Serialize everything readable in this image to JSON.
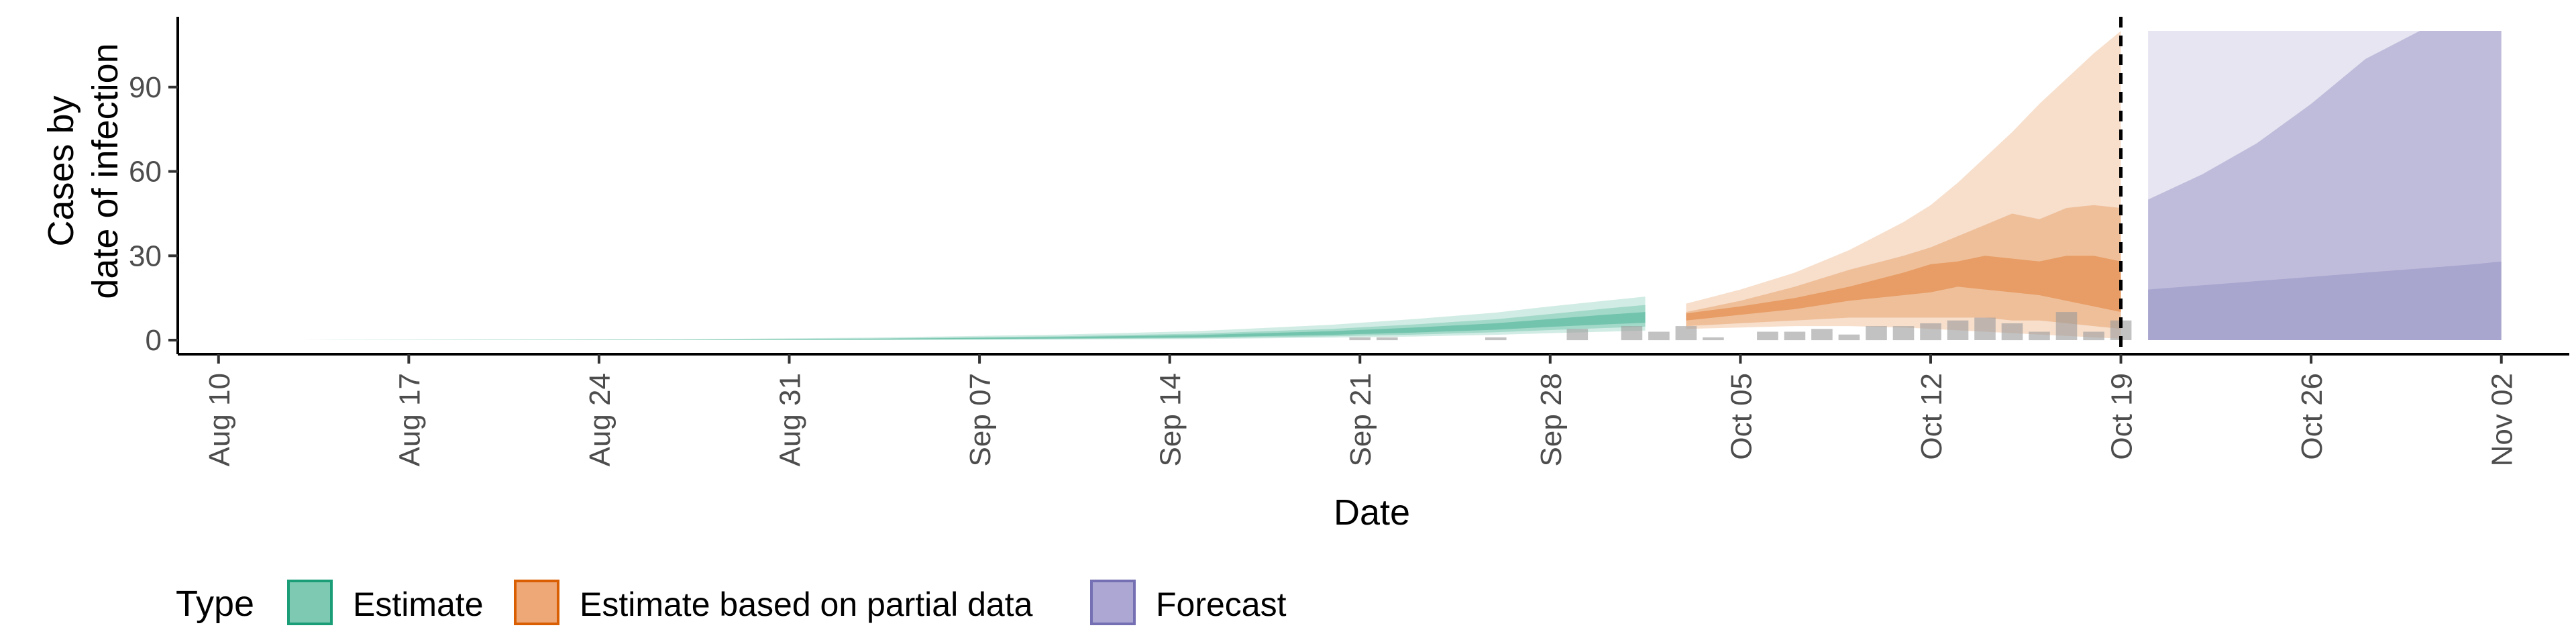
{
  "chart_data": {
    "type": "area",
    "xlabel": "Date",
    "ylabel": [
      "Cases by",
      "date of infection"
    ],
    "x_ticks": [
      "Aug 10",
      "Aug 17",
      "Aug 24",
      "Aug 31",
      "Sep 07",
      "Sep 14",
      "Sep 21",
      "Sep 28",
      "Oct 05",
      "Oct 12",
      "Oct 19",
      "Oct 26",
      "Nov 02"
    ],
    "x_tick_days": [
      0,
      7,
      14,
      21,
      28,
      35,
      42,
      49,
      56,
      63,
      70,
      77,
      84
    ],
    "x_range": [
      -1.5,
      86.5
    ],
    "y_ticks": [
      0,
      30,
      60,
      90
    ],
    "ylim": [
      -5,
      115
    ],
    "forecast_start_line": "Oct 19",
    "legend": {
      "title": "Type",
      "position": "bottom",
      "entries": [
        {
          "label": "Estimate",
          "fill": "#7dc9b1",
          "stroke": "#1b9e77"
        },
        {
          "label": "Estimate based on partial data",
          "fill": "#eea776",
          "stroke": "#d95f02"
        },
        {
          "label": "Forecast",
          "fill": "#ada7d4",
          "stroke": "#7570b3"
        }
      ]
    },
    "colors": {
      "estimate": "#1b9e77",
      "partial": "#d95f02",
      "forecast": "#7570b3",
      "bars": "#999999"
    },
    "reported_cases": [
      {
        "day": 42,
        "cases": 1
      },
      {
        "day": 43,
        "cases": 1
      },
      {
        "day": 47,
        "cases": 1
      },
      {
        "day": 50,
        "cases": 4
      },
      {
        "day": 52,
        "cases": 5
      },
      {
        "day": 53,
        "cases": 3
      },
      {
        "day": 54,
        "cases": 5
      },
      {
        "day": 55,
        "cases": 1
      },
      {
        "day": 57,
        "cases": 3
      },
      {
        "day": 58,
        "cases": 3
      },
      {
        "day": 59,
        "cases": 4
      },
      {
        "day": 60,
        "cases": 2
      },
      {
        "day": 61,
        "cases": 5
      },
      {
        "day": 62,
        "cases": 5
      },
      {
        "day": 63,
        "cases": 6
      },
      {
        "day": 64,
        "cases": 7
      },
      {
        "day": 65,
        "cases": 8
      },
      {
        "day": 66,
        "cases": 6
      },
      {
        "day": 67,
        "cases": 3
      },
      {
        "day": 68,
        "cases": 10
      },
      {
        "day": 69,
        "cases": 3
      },
      {
        "day": 70,
        "cases": 7
      }
    ],
    "estimate": {
      "days": [
        3,
        10,
        17,
        24,
        31,
        36,
        41,
        44,
        47,
        49,
        51,
        52.5
      ],
      "median": [
        0,
        0.05,
        0.1,
        0.3,
        0.8,
        1.3,
        2.4,
        3.4,
        4.6,
        5.8,
        7.0,
        7.8
      ],
      "inner": [
        [
          0,
          0
        ],
        [
          0.03,
          0.1
        ],
        [
          0.06,
          0.15
        ],
        [
          0.2,
          0.45
        ],
        [
          0.6,
          1.1
        ],
        [
          1.0,
          1.8
        ],
        [
          1.9,
          3.2
        ],
        [
          2.7,
          4.5
        ],
        [
          3.7,
          6.0
        ],
        [
          4.7,
          7.5
        ],
        [
          5.6,
          9.0
        ],
        [
          6.2,
          10.0
        ]
      ],
      "mid": [
        [
          0,
          0
        ],
        [
          0.01,
          0.12
        ],
        [
          0.03,
          0.2
        ],
        [
          0.1,
          0.6
        ],
        [
          0.4,
          1.4
        ],
        [
          0.7,
          2.3
        ],
        [
          1.4,
          4.0
        ],
        [
          2.0,
          5.6
        ],
        [
          2.8,
          7.4
        ],
        [
          3.6,
          9.3
        ],
        [
          4.3,
          11.2
        ],
        [
          4.8,
          12.5
        ]
      ],
      "outer": [
        [
          0,
          0.02
        ],
        [
          0,
          0.15
        ],
        [
          0,
          0.3
        ],
        [
          0.05,
          0.9
        ],
        [
          0.2,
          2.0
        ],
        [
          0.4,
          3.2
        ],
        [
          0.9,
          5.5
        ],
        [
          1.3,
          7.5
        ],
        [
          1.9,
          9.8
        ],
        [
          2.5,
          12.0
        ],
        [
          3.0,
          14.0
        ],
        [
          3.4,
          15.5
        ]
      ]
    },
    "partial": {
      "days": [
        54,
        56,
        58,
        60,
        62,
        63,
        64,
        65,
        66,
        67,
        68,
        69,
        70
      ],
      "inner": [
        [
          7,
          9.5
        ],
        [
          9,
          12
        ],
        [
          11,
          15
        ],
        [
          14,
          19
        ],
        [
          16,
          24
        ],
        [
          17,
          27
        ],
        [
          19,
          28
        ],
        [
          18,
          30
        ],
        [
          17,
          29
        ],
        [
          16,
          28
        ],
        [
          14,
          30
        ],
        [
          12,
          30
        ],
        [
          10,
          28
        ]
      ],
      "mid": [
        [
          5,
          10
        ],
        [
          6,
          14
        ],
        [
          7,
          19
        ],
        [
          8,
          25
        ],
        [
          8,
          30
        ],
        [
          8,
          33
        ],
        [
          8,
          37
        ],
        [
          8,
          41
        ],
        [
          7,
          45
        ],
        [
          7,
          43
        ],
        [
          6,
          47
        ],
        [
          5,
          48
        ],
        [
          4,
          47
        ]
      ],
      "outer": [
        [
          4,
          13
        ],
        [
          4.5,
          18
        ],
        [
          5,
          24
        ],
        [
          5,
          32
        ],
        [
          4.5,
          42
        ],
        [
          4,
          48
        ],
        [
          3.5,
          56
        ],
        [
          3,
          65
        ],
        [
          2.5,
          74
        ],
        [
          2,
          84
        ],
        [
          1.5,
          93
        ],
        [
          1,
          102
        ],
        [
          0.5,
          110
        ]
      ]
    },
    "forecast": {
      "days": [
        71,
        73,
        75,
        77,
        79,
        81,
        83,
        84
      ],
      "lower_band_top": [
        18,
        19.5,
        21,
        22.5,
        24,
        25.5,
        27,
        28
      ],
      "mid_band_top": [
        50,
        59,
        70,
        84,
        100,
        110,
        110,
        110
      ],
      "outer_top": [
        110,
        110,
        110,
        110,
        110,
        110,
        110,
        110
      ]
    }
  }
}
